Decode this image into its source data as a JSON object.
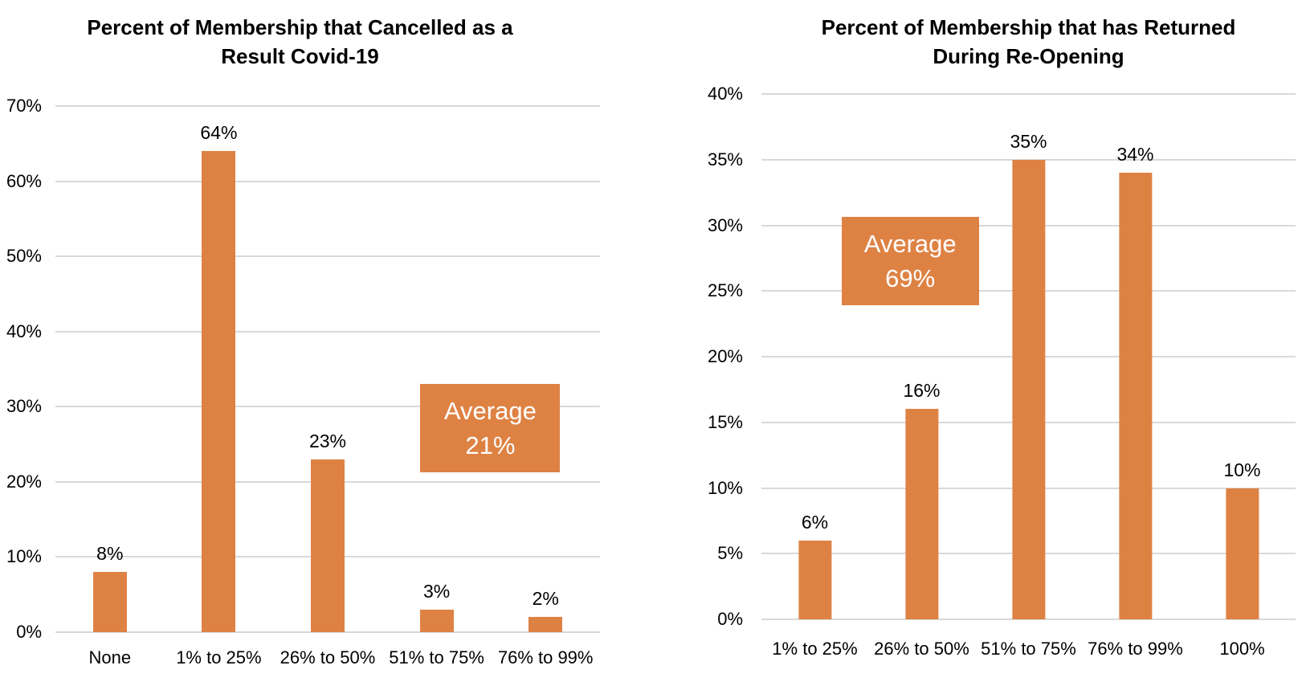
{
  "colors": {
    "bar": "#DE8244",
    "grid": "#D9D9D9",
    "background": "#FFFFFF",
    "annotation_bg": "#DE8244",
    "annotation_text": "#FFFFFF",
    "text": "#000000"
  },
  "chart_data": [
    {
      "type": "bar",
      "title": "Percent of Membership that Cancelled as a Result Covid-19",
      "title_lines": [
        "Percent of Membership that Cancelled as a",
        "Result Covid-19"
      ],
      "categories": [
        "None",
        "1% to 25%",
        "26% to 50%",
        "51% to 75%",
        "76% to 99%"
      ],
      "values": [
        8,
        64,
        23,
        3,
        2
      ],
      "value_labels": [
        "8%",
        "64%",
        "23%",
        "3%",
        "2%"
      ],
      "xlabel": "",
      "ylabel": "",
      "ylim": [
        0,
        70
      ],
      "ytick_step": 10,
      "ytick_labels": [
        "70%",
        "60%",
        "50%",
        "40%",
        "30%",
        "20%",
        "10%",
        "0%"
      ],
      "grid": true,
      "legend": "none",
      "bar_color": "#DE8244",
      "annotation": {
        "line1": "Average",
        "line2": "21%",
        "bg": "#DE8244",
        "text_color": "#FFFFFF",
        "position": {
          "left": "67%",
          "top": "52.8%",
          "width": "25.7%",
          "height": "16.8%"
        }
      }
    },
    {
      "type": "bar",
      "title": "Percent of Membership that has Returned During Re-Opening",
      "title_lines": [
        "Percent of Membership that has Returned",
        "During Re-Opening"
      ],
      "categories": [
        "1% to 25%",
        "26% to 50%",
        "51% to 75%",
        "76% to 99%",
        "100%"
      ],
      "values": [
        6,
        16,
        35,
        34,
        10
      ],
      "value_labels": [
        "6%",
        "16%",
        "35%",
        "34%",
        "10%"
      ],
      "xlabel": "",
      "ylabel": "",
      "ylim": [
        0,
        40
      ],
      "ytick_step": 5,
      "ytick_labels": [
        "40%",
        "35%",
        "30%",
        "25%",
        "20%",
        "15%",
        "10%",
        "5%",
        "0%"
      ],
      "grid": true,
      "legend": "none",
      "bar_color": "#DE8244",
      "annotation": {
        "line1": "Average",
        "line2": "69%",
        "bg": "#DE8244",
        "text_color": "#FFFFFF",
        "position": {
          "left": "15%",
          "top": "23.4%",
          "width": "25.7%",
          "height": "16.8%"
        }
      }
    }
  ]
}
